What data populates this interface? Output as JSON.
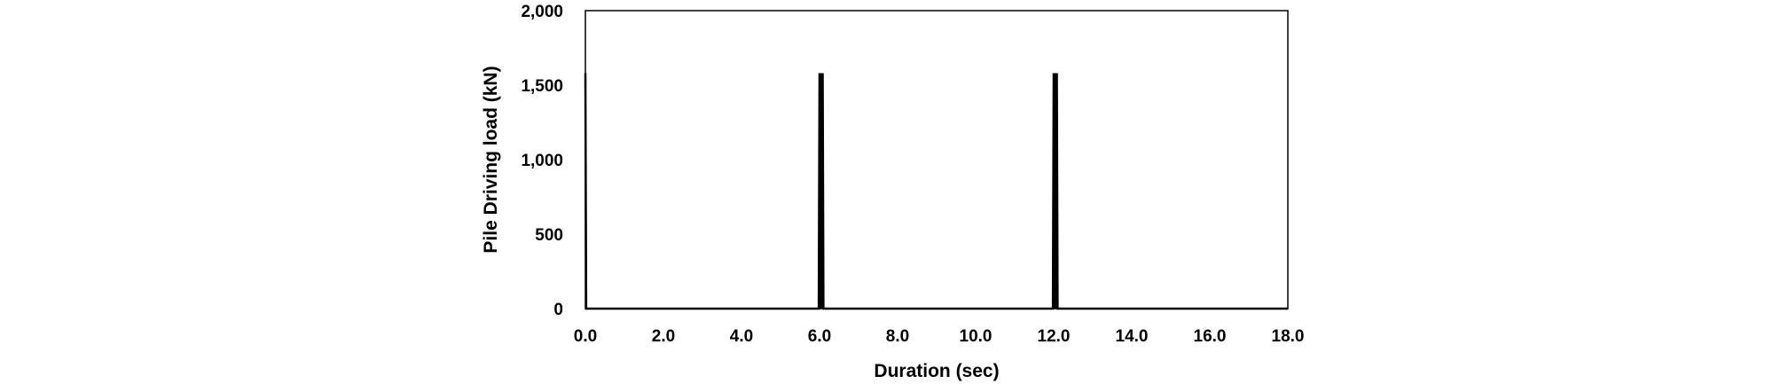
{
  "chart_data": {
    "type": "line",
    "title": "",
    "xlabel": "Duration (sec)",
    "ylabel": "Pile Driving load (kN)",
    "xlim": [
      0,
      18
    ],
    "ylim": [
      0,
      2000
    ],
    "x_ticks": [
      "0.0",
      "2.0",
      "4.0",
      "6.0",
      "8.0",
      "10.0",
      "12.0",
      "14.0",
      "16.0",
      "18.0"
    ],
    "y_ticks": [
      "0",
      "500",
      "1,000",
      "1,500",
      "2,000"
    ],
    "grid": false,
    "legend": "none",
    "series": [
      {
        "color": "#000000",
        "x": [
          0.0,
          0.02,
          0.04,
          0.06,
          5.98,
          6.0,
          6.02,
          6.04,
          6.06,
          6.08,
          6.1,
          11.98,
          12.0,
          12.02,
          12.04,
          12.06,
          12.08,
          12.1,
          18.0
        ],
        "y": [
          1580,
          0,
          0,
          0,
          0,
          1580,
          0,
          1580,
          0,
          1580,
          0,
          0,
          1580,
          0,
          1580,
          0,
          1580,
          0,
          0
        ]
      }
    ]
  }
}
